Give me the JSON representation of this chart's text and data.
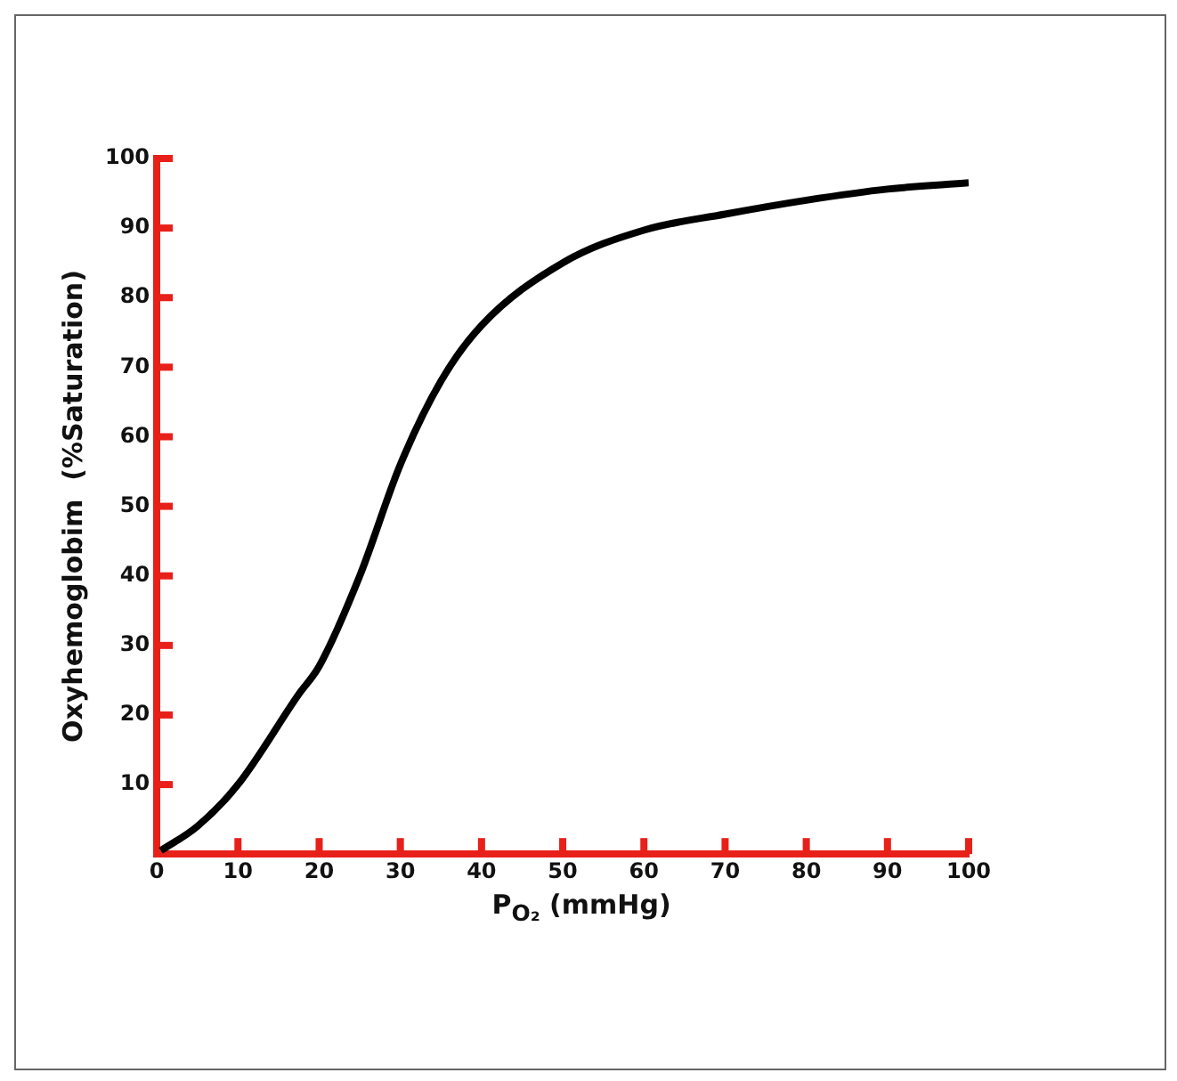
{
  "chart_data": {
    "type": "line",
    "xlabel": "P$_{O₂}$  (mmHg)",
    "ylabel": "Oxyhemoglobim  (%Saturation)",
    "x": [
      0.5,
      5,
      10,
      17.5,
      20,
      25,
      30,
      35,
      40,
      50,
      60,
      70,
      80,
      90,
      100
    ],
    "series": [
      {
        "color": "#000000",
        "values": [
          0.5,
          4,
          10,
          23,
          27,
          40,
          56,
          68,
          76,
          85,
          89.7,
          92,
          94,
          95.6,
          96.5
        ]
      }
    ],
    "xlim": [
      0,
      100
    ],
    "xticks": [
      0,
      10,
      20,
      30,
      40,
      50,
      60,
      70,
      80,
      90,
      100
    ],
    "ylim": [
      0,
      100
    ],
    "yticks": [
      10,
      20,
      30,
      40,
      50,
      60,
      70,
      80,
      90,
      100
    ],
    "grid": false,
    "legend": false,
    "marker": "none",
    "line_style": "solid"
  }
}
